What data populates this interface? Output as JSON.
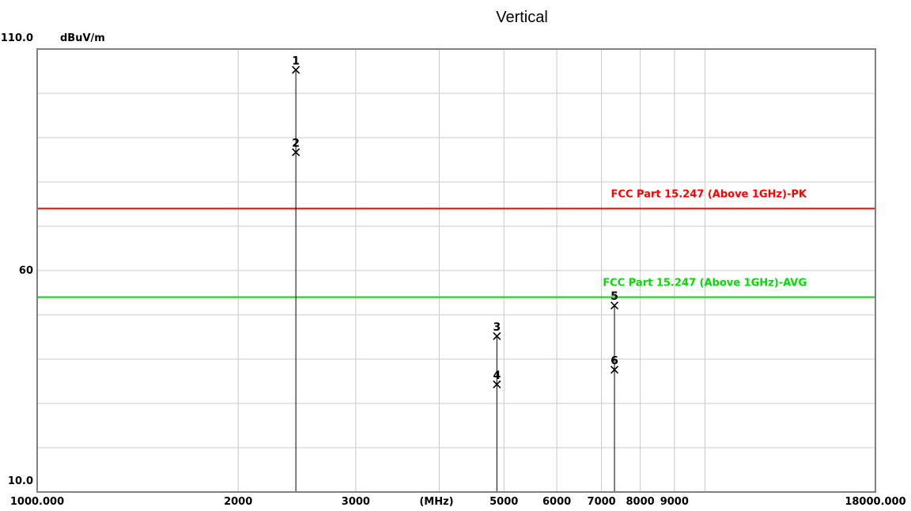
{
  "chart_data": {
    "type": "scatter",
    "title": "Vertical",
    "ylabel": "dBuV/m",
    "xlabel": "(MHz)",
    "x_scale": "log",
    "xlim": [
      1000,
      18000
    ],
    "ylim": [
      10,
      110
    ],
    "y_tick_labels": [
      {
        "value": 110,
        "label": "110.0"
      },
      {
        "value": 60,
        "label": "60"
      },
      {
        "value": 10,
        "label": "10.0"
      }
    ],
    "x_tick_labels": [
      {
        "value": 1000,
        "label": "1000.000"
      },
      {
        "value": 2000,
        "label": "2000"
      },
      {
        "value": 3000,
        "label": "3000"
      },
      {
        "value": 5000,
        "label": "5000"
      },
      {
        "value": 6000,
        "label": "6000"
      },
      {
        "value": 7000,
        "label": "7000"
      },
      {
        "value": 8000,
        "label": "8000"
      },
      {
        "value": 9000,
        "label": "9000"
      },
      {
        "value": 18000,
        "label": "18000.000"
      }
    ],
    "x_gridlines": [
      2000,
      3000,
      4000,
      5000,
      6000,
      7000,
      8000,
      9000,
      10000
    ],
    "y_gridlines": [
      20,
      30,
      40,
      50,
      60,
      70,
      80,
      90,
      100
    ],
    "limit_lines": [
      {
        "name": "FCC Part 15.247 (Above 1GHz)-PK",
        "value": 74,
        "color": "#ff0000"
      },
      {
        "name": "FCC Part 15.247 (Above 1GHz)-AVG",
        "value": 54,
        "color": "#00dd00"
      }
    ],
    "markers": [
      {
        "label": "1",
        "x": 2440,
        "y": 105.3
      },
      {
        "label": "2",
        "x": 2440,
        "y": 86.7
      },
      {
        "label": "3",
        "x": 4880,
        "y": 45.2
      },
      {
        "label": "4",
        "x": 4880,
        "y": 34.3
      },
      {
        "label": "5",
        "x": 7320,
        "y": 52.1
      },
      {
        "label": "6",
        "x": 7320,
        "y": 37.6
      }
    ],
    "colors": {
      "grid": "#c8c8c8",
      "frame": "#808080",
      "marker": "#000000"
    }
  }
}
